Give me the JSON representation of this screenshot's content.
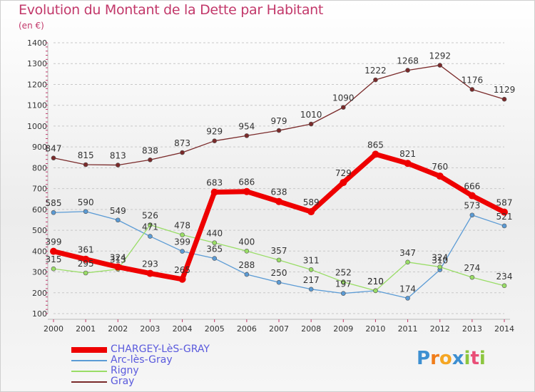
{
  "chart_data": {
    "type": "line",
    "title": "Evolution du Montant de la Dette par Habitant",
    "subtitle": "(en €)",
    "x": [
      "2000",
      "2001",
      "2002",
      "2003",
      "2004",
      "2005",
      "2006",
      "2007",
      "2008",
      "2009",
      "2010",
      "2011",
      "2012",
      "2013",
      "2014"
    ],
    "ylim": [
      100,
      1400
    ],
    "yticks": [
      100,
      200,
      300,
      400,
      500,
      600,
      700,
      800,
      900,
      1000,
      1100,
      1200,
      1300,
      1400
    ],
    "grid": "horizontal dashed",
    "legend_position": "bottom-left",
    "series": [
      {
        "name": "CHARGEY-LèS-GRAY",
        "color": "#ee0000",
        "values": [
          399,
          361,
          324,
          293,
          265,
          683,
          686,
          638,
          589,
          729,
          865,
          821,
          760,
          666,
          587
        ],
        "labels": [
          "399",
          "361",
          "324",
          "293",
          "265",
          "683",
          "686",
          "638",
          "589",
          "729",
          "865",
          "821",
          "760",
          "666",
          "587"
        ]
      },
      {
        "name": "Arc-lès-Gray",
        "color": "#5b9bd5",
        "values": [
          585,
          590,
          549,
          471,
          399,
          365,
          288,
          250,
          217,
          197,
          210,
          174,
          310,
          573,
          521
        ],
        "labels": [
          "585",
          "590",
          "549",
          "471",
          "399",
          "365",
          "288",
          "250",
          "217",
          "197",
          "210",
          "174",
          "310",
          "573",
          "521"
        ]
      },
      {
        "name": "Rigny",
        "color": "#99dd66",
        "values": [
          315,
          295,
          313,
          526,
          478,
          440,
          400,
          357,
          311,
          252,
          210,
          347,
          324,
          274,
          234
        ],
        "labels": [
          "315",
          "295",
          "313",
          "526",
          "478",
          "440",
          "400",
          "357",
          "311",
          "252",
          "210",
          "347",
          "324",
          "274",
          "234"
        ]
      },
      {
        "name": "Gray",
        "color": "#7a2a2a",
        "values": [
          847,
          815,
          813,
          838,
          873,
          929,
          954,
          979,
          1010,
          1090,
          1222,
          1268,
          1292,
          1176,
          1129
        ],
        "labels": [
          "847",
          "815",
          "813",
          "838",
          "873",
          "929",
          "954",
          "979",
          "1010",
          "1090",
          "1222",
          "1268",
          "1292",
          "1176",
          "1129"
        ]
      }
    ]
  },
  "logo": {
    "letters": [
      "P",
      "r",
      "o",
      "x",
      "i",
      "t",
      "i"
    ],
    "colors": [
      "#3d8fd1",
      "#f07d1a",
      "#f5a623",
      "#3d8fd1",
      "#8cc63f",
      "#e94e77",
      "#8cc63f"
    ]
  }
}
